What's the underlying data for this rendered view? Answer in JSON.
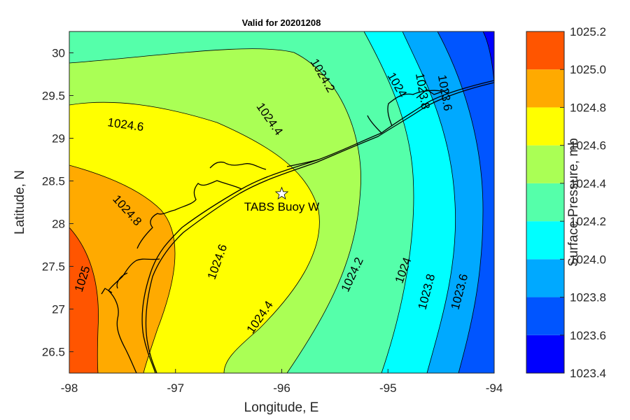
{
  "chart_data": {
    "type": "heatmap",
    "subtype": "filled-contour-map",
    "title": "Valid for 20201208",
    "xlabel": "Longitude, E",
    "ylabel": "Latitude, N",
    "xlim": [
      -98,
      -94
    ],
    "ylim": [
      26.25,
      30.25
    ],
    "x_ticks": [
      "-98",
      "-97",
      "-96",
      "-95",
      "-94"
    ],
    "x_tick_values": [
      -98,
      -97,
      -96,
      -95,
      -94
    ],
    "y_ticks": [
      "26.5",
      "27",
      "27.5",
      "28",
      "28.5",
      "29",
      "29.5",
      "30"
    ],
    "y_tick_values": [
      26.5,
      27,
      27.5,
      28,
      28.5,
      29,
      29.5,
      30
    ],
    "colorbar": {
      "label": "Surface Pressure, mb",
      "range": [
        1023.4,
        1025.2
      ],
      "ticks": [
        "1025.2",
        "1025.0",
        "1024.8",
        "1024.6",
        "1024.4",
        "1024.2",
        "1024.0",
        "1023.8",
        "1023.6",
        "1023.4"
      ],
      "levels": [
        1023.4,
        1023.6,
        1023.8,
        1024.0,
        1024.2,
        1024.4,
        1024.6,
        1024.8,
        1025.0,
        1025.2
      ],
      "colors": [
        "#0000ff",
        "#0055ff",
        "#00a9ff",
        "#00ffff",
        "#55ffaa",
        "#aaff55",
        "#ffff00",
        "#ffaa00",
        "#ff5500"
      ]
    },
    "contour_labels": [
      {
        "text": "1025",
        "lon": -97.87,
        "lat": 27.35
      },
      {
        "text": "1024.8",
        "lon": -97.46,
        "lat": 28.15
      },
      {
        "text": "1024.6",
        "lon": -97.47,
        "lat": 29.15
      },
      {
        "text": "1024.6",
        "lon": -96.6,
        "lat": 27.55
      },
      {
        "text": "1024.4",
        "lon": -96.12,
        "lat": 29.22
      },
      {
        "text": "1024.4",
        "lon": -96.2,
        "lat": 26.9
      },
      {
        "text": "1024.2",
        "lon": -95.62,
        "lat": 29.73
      },
      {
        "text": "1024.2",
        "lon": -95.33,
        "lat": 27.4
      },
      {
        "text": "1024",
        "lon": -94.92,
        "lat": 29.62
      },
      {
        "text": "1024",
        "lon": -94.85,
        "lat": 27.45
      },
      {
        "text": "1023.8",
        "lon": -94.68,
        "lat": 29.55
      },
      {
        "text": "1023.8",
        "lon": -94.63,
        "lat": 27.2
      },
      {
        "text": "1023.6",
        "lon": -94.47,
        "lat": 29.53
      },
      {
        "text": "1023.6",
        "lon": -94.32,
        "lat": 27.2
      }
    ],
    "annotations": [
      {
        "text": "TABS Buoy W",
        "marker": "star",
        "lon": -96.0,
        "lat": 28.35
      }
    ]
  }
}
